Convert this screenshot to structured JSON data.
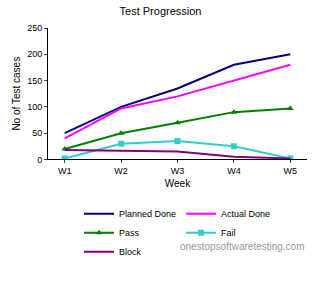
{
  "chart_data": {
    "type": "line",
    "title": "Test Progression",
    "x_label": "Week",
    "y_label": "No of Test cases",
    "categories": [
      "W1",
      "W2",
      "W3",
      "W4",
      "W5"
    ],
    "series": [
      {
        "name": "Planned Done",
        "color": "#000080",
        "marker": "none",
        "values": [
          50,
          100,
          135,
          180,
          200
        ]
      },
      {
        "name": "Actual Done",
        "color": "#ff00ff",
        "marker": "none",
        "values": [
          40,
          97,
          120,
          150,
          180
        ]
      },
      {
        "name": "Pass",
        "color": "#008000",
        "marker": "triangle",
        "values": [
          20,
          50,
          70,
          90,
          97
        ]
      },
      {
        "name": "Fail",
        "color": "#33cccc",
        "marker": "square",
        "values": [
          2,
          30,
          35,
          25,
          2
        ]
      },
      {
        "name": "Block",
        "color": "#800080",
        "marker": "none",
        "values": [
          18,
          17,
          15,
          5,
          2
        ]
      }
    ],
    "ylim": [
      0,
      250
    ],
    "yticks": [
      0,
      50,
      100,
      150,
      200,
      250
    ],
    "grid": false,
    "legend": "bottom",
    "annotations": [
      "onestopsoftwaretesting.com"
    ]
  }
}
